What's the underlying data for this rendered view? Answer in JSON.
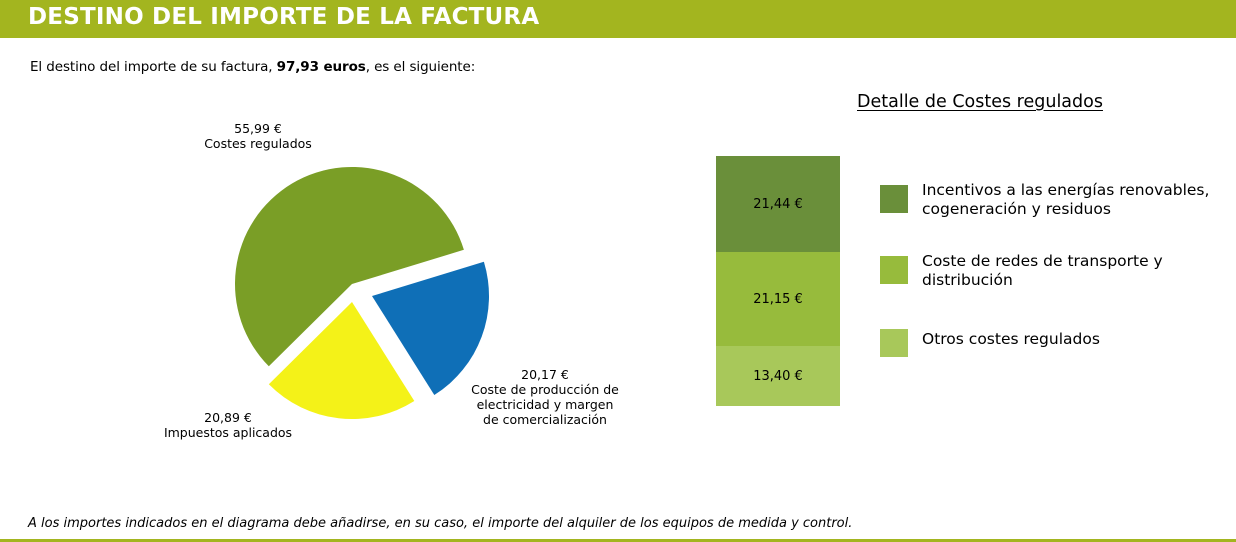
{
  "header": {
    "title": "DESTINO DEL IMPORTE DE LA FACTURA"
  },
  "intro": {
    "prefix": "El destino del importe de su factura, ",
    "amount": "97,93 euros",
    "suffix": ", es el siguiente:"
  },
  "colors": {
    "banner": "#a3b51f",
    "costes_regulados": "#7a9e26",
    "impuestos": "#f4f218",
    "produccion": "#0f6fb7",
    "renovables": "#6a8f3a",
    "redes": "#97bb3c",
    "otros": "#a8c85a"
  },
  "chart_data": [
    {
      "type": "pie",
      "total": 97.93,
      "slices": [
        {
          "key": "costes_regulados",
          "value": 55.99,
          "amount_label": "55,99 €",
          "name_lines": [
            "Costes regulados"
          ]
        },
        {
          "key": "produccion",
          "value": 20.17,
          "amount_label": "20,17 €",
          "name_lines": [
            "Coste de producción de",
            "electricidad y margen",
            "de comercialización"
          ]
        },
        {
          "key": "impuestos",
          "value": 20.89,
          "amount_label": "20,89 €",
          "name_lines": [
            "Impuestos aplicados"
          ]
        }
      ]
    },
    {
      "type": "bar",
      "stacked": true,
      "title": "Detalle de Costes regulados",
      "segments": [
        {
          "key": "renovables",
          "value": 21.44,
          "label": "21,44 €",
          "legend": [
            "Incentivos a las energías renovables,",
            "cogeneración y residuos"
          ]
        },
        {
          "key": "redes",
          "value": 21.15,
          "label": "21,15 €",
          "legend": [
            "Coste de redes de transporte y",
            "distribución"
          ]
        },
        {
          "key": "otros",
          "value": 13.4,
          "label": "13,40 €",
          "legend": [
            "Otros costes regulados"
          ]
        }
      ]
    }
  ],
  "footnote": "A los importes indicados en el diagrama debe añadirse, en su caso, el importe del alquiler de los equipos de medida y control."
}
